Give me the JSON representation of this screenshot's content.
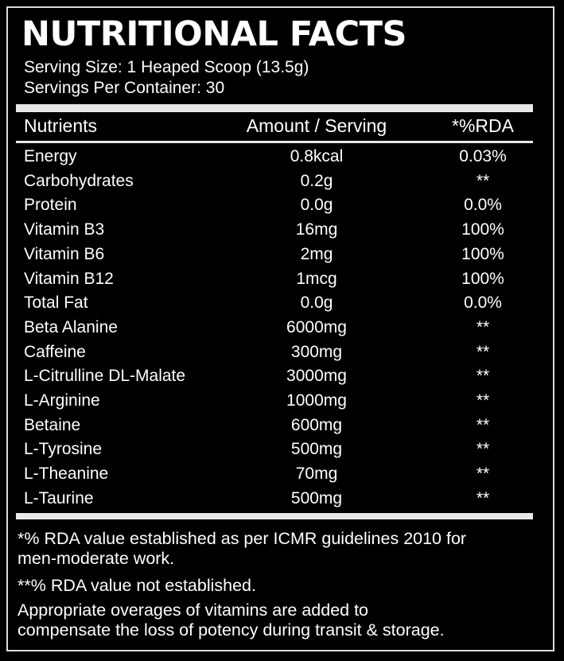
{
  "header": {
    "title": "NUTRITIONAL FACTS",
    "serving_size": "Serving Size: 1 Heaped Scoop (13.5g)",
    "servings_per_container": "Servings Per Container: 30"
  },
  "table": {
    "columns": [
      "Nutrients",
      "Amount / Serving",
      "*%RDA"
    ],
    "rows": [
      [
        "Energy",
        "0.8kcal",
        "0.03%"
      ],
      [
        "Carbohydrates",
        "0.2g",
        "**"
      ],
      [
        "Protein",
        "0.0g",
        "0.0%"
      ],
      [
        "Vitamin B3",
        "16mg",
        "100%"
      ],
      [
        "Vitamin B6",
        "2mg",
        "100%"
      ],
      [
        "Vitamin B12",
        "1mcg",
        "100%"
      ],
      [
        "Total Fat",
        "0.0g",
        "0.0%"
      ],
      [
        "Beta Alanine",
        "6000mg",
        "**"
      ],
      [
        "Caffeine",
        "300mg",
        "**"
      ],
      [
        "L-Citrulline DL-Malate",
        "3000mg",
        "**"
      ],
      [
        "L-Arginine",
        "1000mg",
        "**"
      ],
      [
        "Betaine",
        "600mg",
        "**"
      ],
      [
        "L-Tyrosine",
        "500mg",
        "**"
      ],
      [
        "L-Theanine",
        "70mg",
        "**"
      ],
      [
        "L-Taurine",
        "500mg",
        "**"
      ]
    ]
  },
  "footnotes": [
    [
      "*% RDA value established as per ICMR guidelines 2010 for",
      "men-moderate work."
    ],
    [
      "**% RDA value not established."
    ],
    [
      "Appropriate overages of vitamins are added to",
      "compensate the loss of potency during transit & storage."
    ]
  ]
}
